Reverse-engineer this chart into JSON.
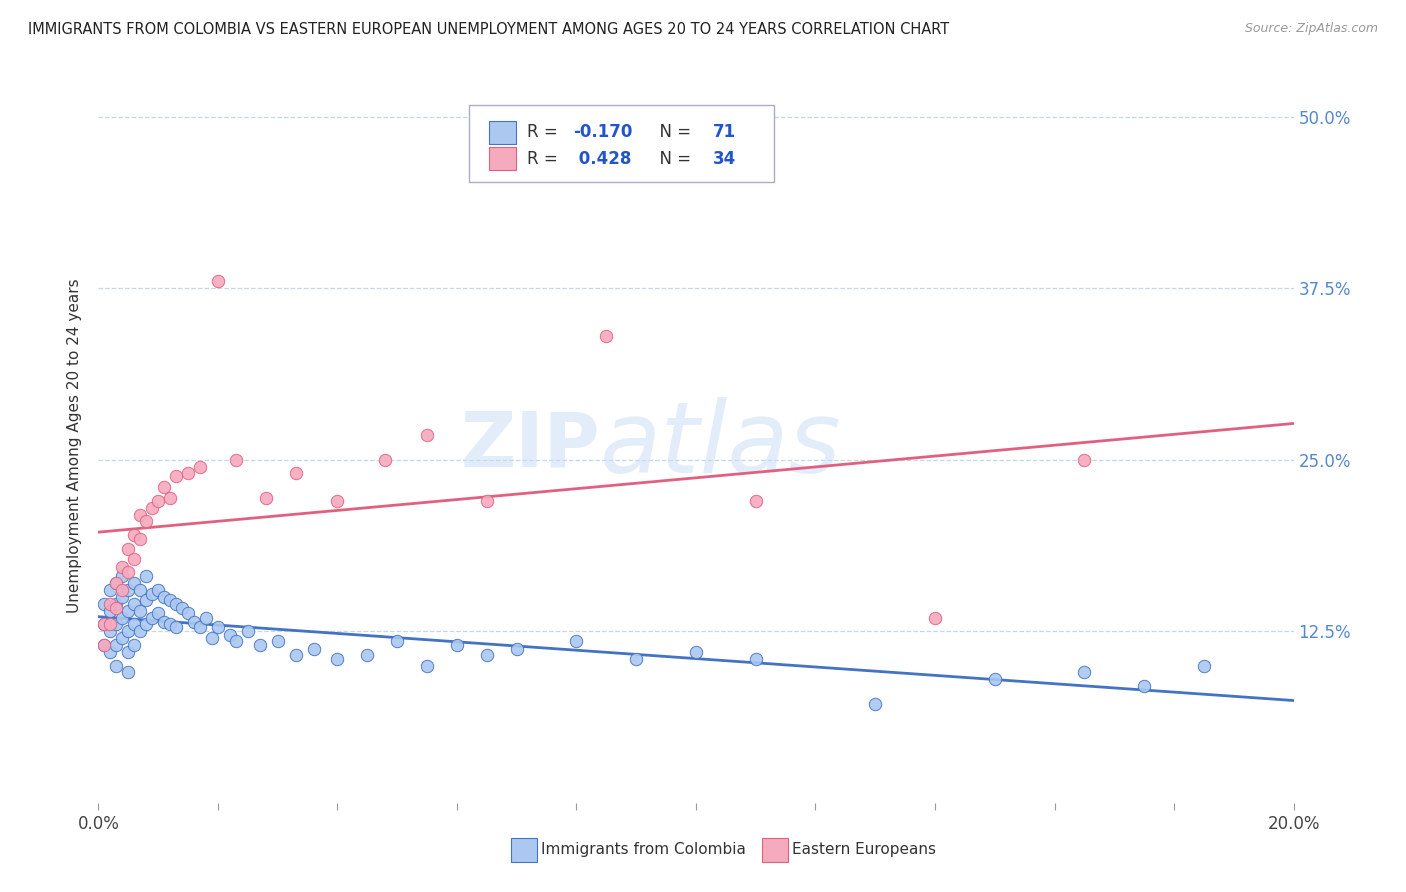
{
  "title": "IMMIGRANTS FROM COLOMBIA VS EASTERN EUROPEAN UNEMPLOYMENT AMONG AGES 20 TO 24 YEARS CORRELATION CHART",
  "source": "Source: ZipAtlas.com",
  "ylabel": "Unemployment Among Ages 20 to 24 years",
  "xlim": [
    0.0,
    0.2
  ],
  "ylim": [
    0.0,
    0.52
  ],
  "yticks": [
    0.0,
    0.125,
    0.25,
    0.375,
    0.5
  ],
  "ytick_labels": [
    "",
    "12.5%",
    "25.0%",
    "37.5%",
    "50.0%"
  ],
  "blue_r": -0.17,
  "blue_n": 71,
  "pink_r": 0.428,
  "pink_n": 34,
  "blue_color": "#aac8f0",
  "pink_color": "#f5aabe",
  "blue_line_color": "#4472c4",
  "pink_line_color": "#e06080",
  "legend_label_blue": "Immigrants from Colombia",
  "legend_label_pink": "Eastern Europeans",
  "watermark": "ZIPAtlas",
  "blue_scatter_x": [
    0.001,
    0.001,
    0.001,
    0.002,
    0.002,
    0.002,
    0.002,
    0.003,
    0.003,
    0.003,
    0.003,
    0.003,
    0.004,
    0.004,
    0.004,
    0.004,
    0.005,
    0.005,
    0.005,
    0.005,
    0.005,
    0.006,
    0.006,
    0.006,
    0.006,
    0.007,
    0.007,
    0.007,
    0.008,
    0.008,
    0.008,
    0.009,
    0.009,
    0.01,
    0.01,
    0.011,
    0.011,
    0.012,
    0.012,
    0.013,
    0.013,
    0.014,
    0.015,
    0.016,
    0.017,
    0.018,
    0.019,
    0.02,
    0.022,
    0.023,
    0.025,
    0.027,
    0.03,
    0.033,
    0.036,
    0.04,
    0.045,
    0.05,
    0.055,
    0.06,
    0.065,
    0.07,
    0.08,
    0.09,
    0.1,
    0.11,
    0.13,
    0.15,
    0.165,
    0.175,
    0.185
  ],
  "blue_scatter_y": [
    0.145,
    0.13,
    0.115,
    0.155,
    0.14,
    0.125,
    0.11,
    0.16,
    0.145,
    0.13,
    0.115,
    0.1,
    0.165,
    0.15,
    0.135,
    0.12,
    0.155,
    0.14,
    0.125,
    0.11,
    0.095,
    0.16,
    0.145,
    0.13,
    0.115,
    0.155,
    0.14,
    0.125,
    0.165,
    0.148,
    0.13,
    0.152,
    0.135,
    0.155,
    0.138,
    0.15,
    0.132,
    0.148,
    0.13,
    0.145,
    0.128,
    0.142,
    0.138,
    0.132,
    0.128,
    0.135,
    0.12,
    0.128,
    0.122,
    0.118,
    0.125,
    0.115,
    0.118,
    0.108,
    0.112,
    0.105,
    0.108,
    0.118,
    0.1,
    0.115,
    0.108,
    0.112,
    0.118,
    0.105,
    0.11,
    0.105,
    0.072,
    0.09,
    0.095,
    0.085,
    0.1
  ],
  "pink_scatter_x": [
    0.001,
    0.001,
    0.002,
    0.002,
    0.003,
    0.003,
    0.004,
    0.004,
    0.005,
    0.005,
    0.006,
    0.006,
    0.007,
    0.007,
    0.008,
    0.009,
    0.01,
    0.011,
    0.012,
    0.013,
    0.015,
    0.017,
    0.02,
    0.023,
    0.028,
    0.033,
    0.04,
    0.048,
    0.055,
    0.065,
    0.085,
    0.11,
    0.14,
    0.165
  ],
  "pink_scatter_y": [
    0.13,
    0.115,
    0.145,
    0.13,
    0.16,
    0.142,
    0.172,
    0.155,
    0.185,
    0.168,
    0.195,
    0.178,
    0.21,
    0.192,
    0.205,
    0.215,
    0.22,
    0.23,
    0.222,
    0.238,
    0.24,
    0.245,
    0.38,
    0.25,
    0.222,
    0.24,
    0.22,
    0.25,
    0.268,
    0.22,
    0.34,
    0.22,
    0.135,
    0.25
  ]
}
